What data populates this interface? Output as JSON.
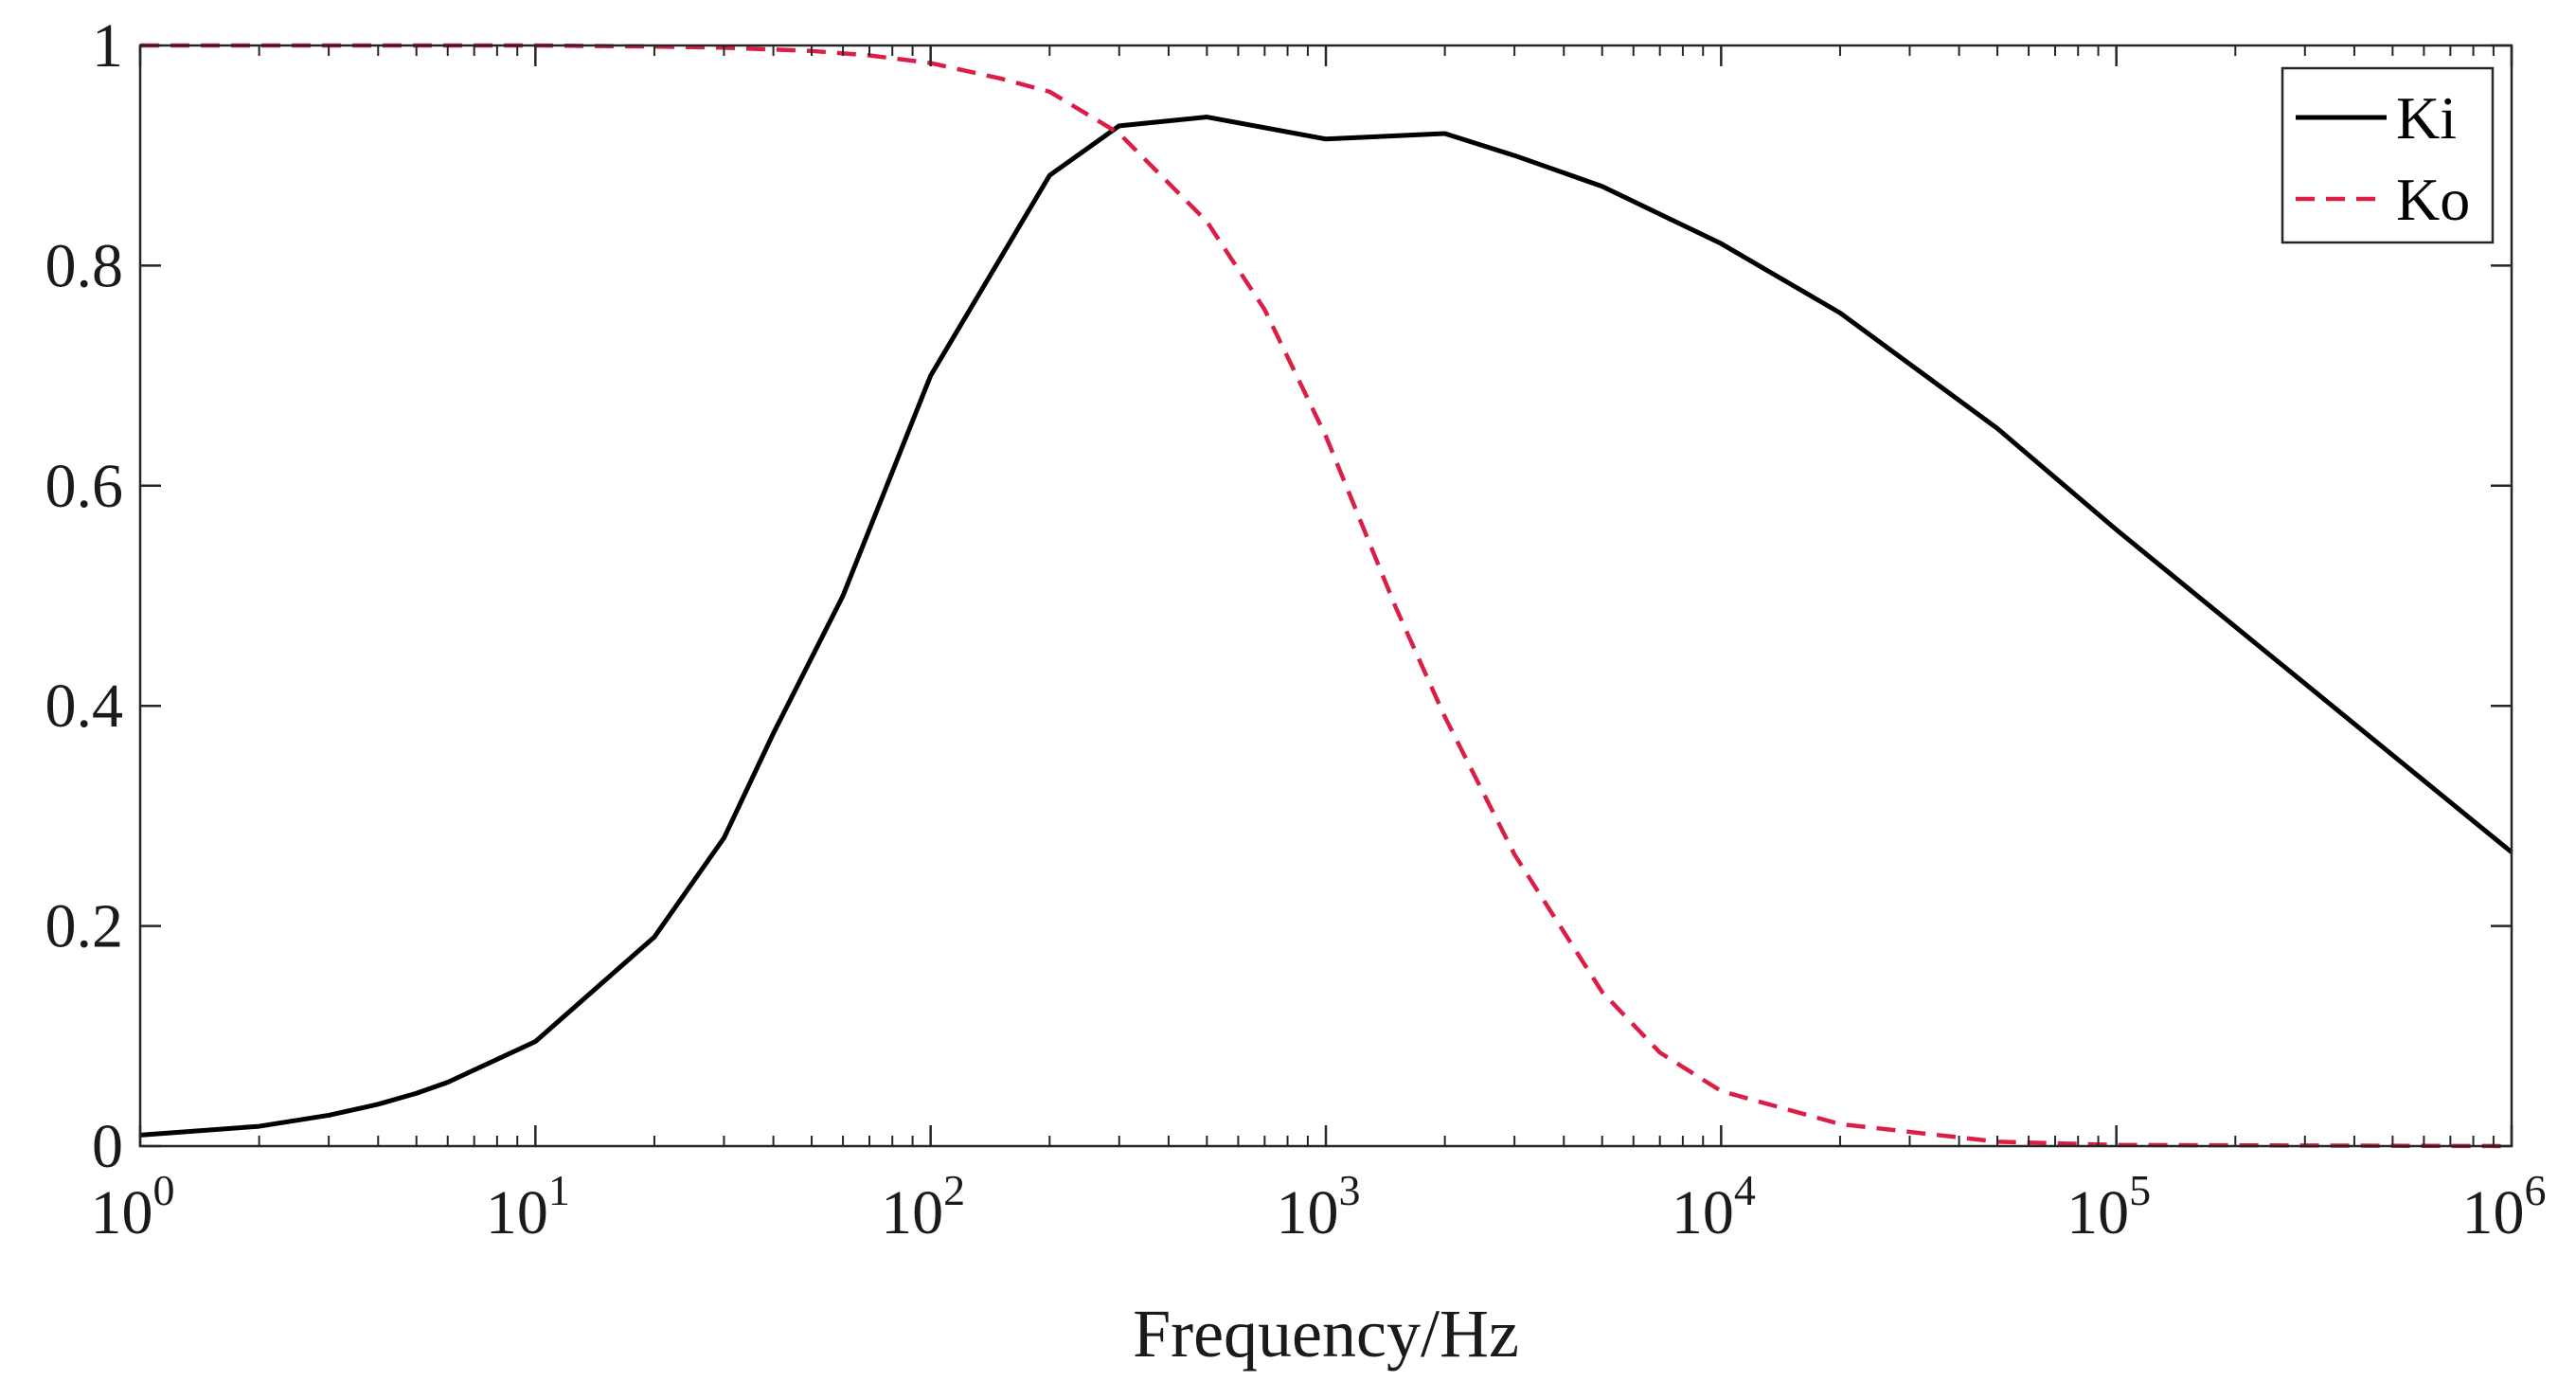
{
  "chart_data": {
    "type": "line",
    "title": "",
    "xlabel": "Frequency/Hz",
    "ylabel": "",
    "xscale": "log",
    "xlim": [
      1,
      1000000
    ],
    "ylim": [
      0,
      1
    ],
    "x_ticks": [
      {
        "value": 1,
        "base": "10",
        "exp": "0"
      },
      {
        "value": 10,
        "base": "10",
        "exp": "1"
      },
      {
        "value": 100,
        "base": "10",
        "exp": "2"
      },
      {
        "value": 1000,
        "base": "10",
        "exp": "3"
      },
      {
        "value": 10000,
        "base": "10",
        "exp": "4"
      },
      {
        "value": 100000,
        "base": "10",
        "exp": "5"
      },
      {
        "value": 1000000,
        "base": "10",
        "exp": "6"
      }
    ],
    "y_ticks": [
      {
        "value": 0,
        "label": "0"
      },
      {
        "value": 0.2,
        "label": "0.2"
      },
      {
        "value": 0.4,
        "label": "0.4"
      },
      {
        "value": 0.6,
        "label": "0.6"
      },
      {
        "value": 0.8,
        "label": "0.8"
      },
      {
        "value": 1,
        "label": "1"
      }
    ],
    "grid": false,
    "box": true,
    "legend_position": "top-right",
    "series": [
      {
        "name": "Ki",
        "color": "#000000",
        "style": "solid",
        "x": [
          1,
          2,
          3,
          4,
          5,
          6,
          10,
          20,
          30,
          40,
          60,
          100,
          200,
          300,
          500,
          1000,
          2000,
          3000,
          5000,
          10000,
          20000,
          50000,
          100000,
          1000000
        ],
        "y": [
          0.01,
          0.018,
          0.028,
          0.038,
          0.048,
          0.058,
          0.095,
          0.19,
          0.28,
          0.375,
          0.5,
          0.7,
          0.882,
          0.927,
          0.935,
          0.915,
          0.92,
          0.9,
          0.872,
          0.82,
          0.757,
          0.652,
          0.56,
          0.267
        ]
      },
      {
        "name": "Ko",
        "color": "#dc1e46",
        "style": "dashed",
        "x": [
          1,
          10,
          20,
          30,
          50,
          70,
          100,
          150,
          200,
          300,
          500,
          700,
          1000,
          1500,
          2000,
          3000,
          5000,
          7000,
          10000,
          20000,
          50000,
          100000,
          1000000
        ],
        "y": [
          1.0,
          1.0,
          0.999,
          0.998,
          0.995,
          0.991,
          0.984,
          0.97,
          0.958,
          0.92,
          0.84,
          0.76,
          0.645,
          0.49,
          0.39,
          0.265,
          0.14,
          0.085,
          0.05,
          0.02,
          0.004,
          0.001,
          0.0
        ]
      }
    ]
  }
}
